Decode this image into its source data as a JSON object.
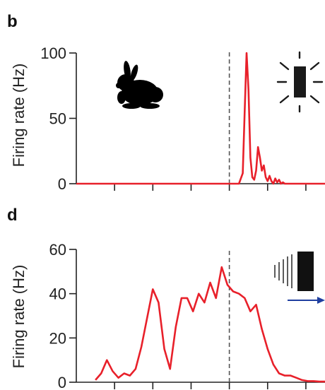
{
  "colors": {
    "trace": "#e8202a",
    "axis": "#222222",
    "marker": "#555555",
    "arrow": "#1f3fa0"
  },
  "panels": [
    {
      "letter": "b",
      "ylabel": "Firing rate (Hz)",
      "icon": "rabbit-icon",
      "stimulus_icon": "flashing-light-icon"
    },
    {
      "letter": "d",
      "ylabel": "Firing rate (Hz)",
      "icon": "receding-object-icon",
      "stimulus_icon": "right-arrow-icon"
    }
  ],
  "chart_data": [
    {
      "type": "line",
      "title": "",
      "xlabel": "",
      "ylabel": "Firing rate (Hz)",
      "ylim": [
        0,
        100
      ],
      "yticks": [
        0,
        50,
        100
      ],
      "ytick_labels": [
        "0",
        "50",
        "100"
      ],
      "xlim": [
        0,
        13
      ],
      "xticks": [
        2,
        4,
        6,
        8,
        10,
        12
      ],
      "event_marker_x": 8,
      "grid": false,
      "series": [
        {
          "x": [
            0,
            8.5,
            8.7,
            8.8,
            8.9,
            9.0,
            9.1,
            9.2,
            9.3,
            9.4,
            9.5,
            9.6,
            9.7,
            9.8,
            9.9,
            10.0,
            10.1,
            10.2,
            10.3,
            10.4,
            10.5,
            10.6,
            10.7,
            10.8,
            10.9,
            11.0,
            11.2,
            13
          ],
          "y": [
            0,
            0,
            8,
            55,
            100,
            72,
            20,
            5,
            3,
            10,
            28,
            20,
            10,
            14,
            5,
            2,
            6,
            2,
            0,
            4,
            1,
            3,
            0,
            1,
            0,
            0,
            0,
            0
          ]
        }
      ]
    },
    {
      "type": "line",
      "title": "",
      "xlabel": "",
      "ylabel": "Firing rate (Hz)",
      "ylim": [
        0,
        60
      ],
      "yticks": [
        0,
        20,
        40,
        60
      ],
      "ytick_labels": [
        "0",
        "20",
        "40",
        "60"
      ],
      "xlim": [
        0,
        13
      ],
      "xticks": [
        2,
        4,
        6,
        8,
        10,
        12
      ],
      "event_marker_x": 8,
      "grid": false,
      "series": [
        {
          "x": [
            1.0,
            1.3,
            1.6,
            1.9,
            2.2,
            2.5,
            2.8,
            3.1,
            3.4,
            3.7,
            4.0,
            4.3,
            4.6,
            4.9,
            5.2,
            5.5,
            5.8,
            6.1,
            6.4,
            6.7,
            7.0,
            7.3,
            7.6,
            7.9,
            8.2,
            8.5,
            8.8,
            9.1,
            9.4,
            9.7,
            10.0,
            10.3,
            10.6,
            10.9,
            11.2,
            11.5,
            11.8,
            12.1,
            12.4,
            12.7,
            13.0
          ],
          "y": [
            1,
            4,
            10,
            5,
            2,
            4,
            3,
            6,
            16,
            29,
            42,
            36,
            15,
            6,
            25,
            38,
            38,
            32,
            40,
            36,
            45,
            38,
            52,
            44,
            41,
            40,
            38,
            32,
            35,
            24,
            15,
            8,
            4,
            3,
            3,
            2,
            1,
            0.5,
            0.5,
            0.3,
            0.3
          ]
        }
      ]
    }
  ]
}
